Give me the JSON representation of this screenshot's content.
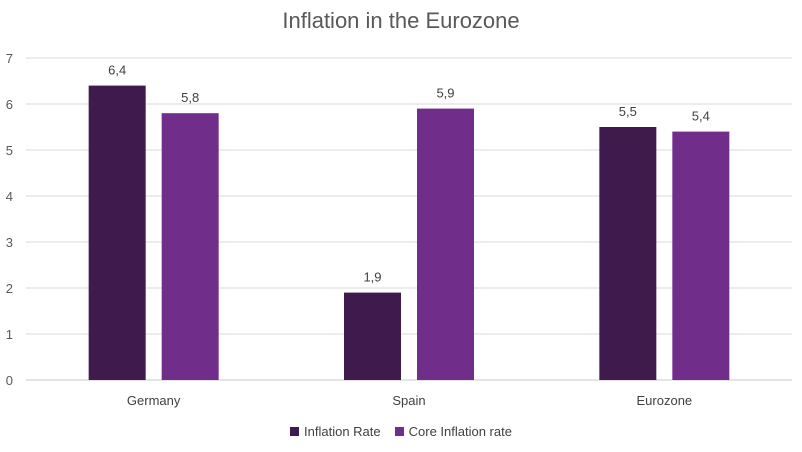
{
  "chart_data": {
    "type": "bar",
    "title": "Inflation in the Eurozone",
    "categories": [
      "Germany",
      "Spain",
      "Eurozone"
    ],
    "series": [
      {
        "name": "Inflation Rate",
        "color": "#3e1a4d",
        "values": [
          6.4,
          1.9,
          5.5
        ],
        "labels": [
          "6,4",
          "1,9",
          "5,5"
        ]
      },
      {
        "name": "Core Inflation rate",
        "color": "#702e8a",
        "values": [
          5.8,
          5.9,
          5.4
        ],
        "labels": [
          "5,8",
          "5,9",
          "5,4"
        ]
      }
    ],
    "ylim": [
      0,
      7
    ],
    "yticks": [
      "0",
      "1",
      "2",
      "3",
      "4",
      "5",
      "6",
      "7"
    ],
    "grid": true,
    "legend_position": "bottom"
  }
}
